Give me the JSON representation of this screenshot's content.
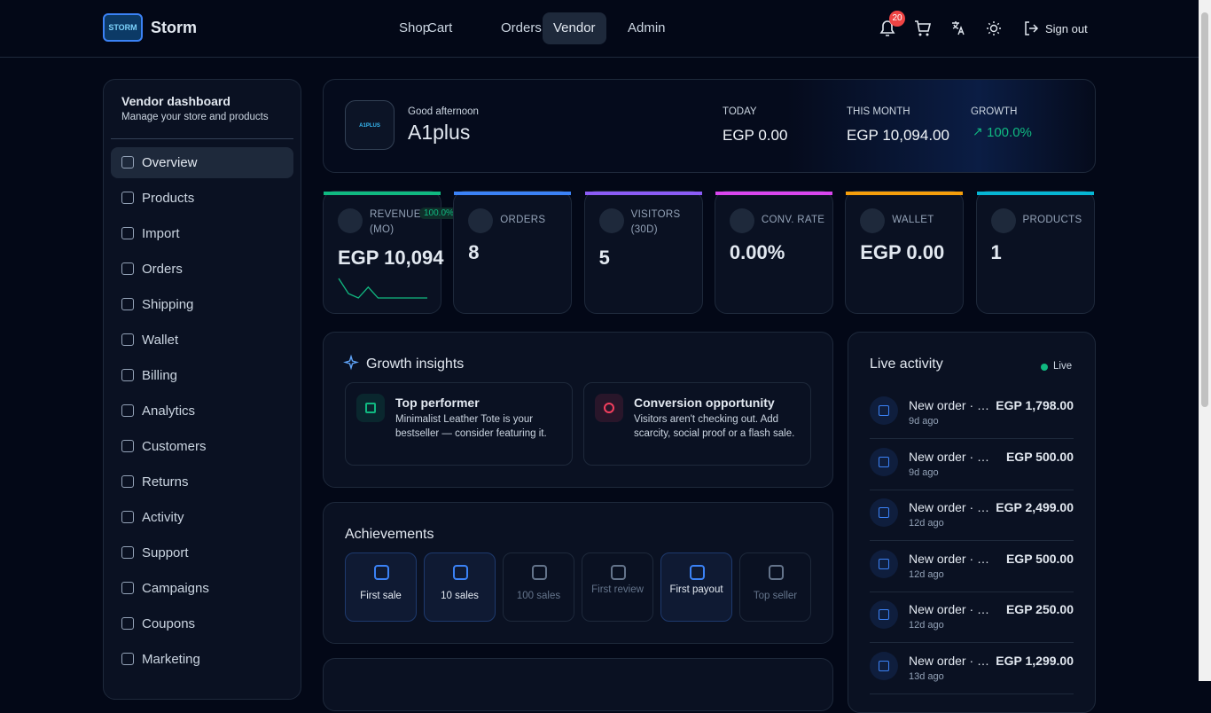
{
  "nav": {
    "logo_text": "STORM",
    "brand": "Storm",
    "links": [
      "Shop",
      "Cart",
      "Orders",
      "Vendor",
      "Admin"
    ],
    "active": 3,
    "notifications": "20",
    "sign_out": "Sign out"
  },
  "sidebar": {
    "title": "Vendor dashboard",
    "subtitle": "Manage your store and products",
    "active": 0,
    "items": [
      "Overview",
      "Products",
      "Import",
      "Orders",
      "Shipping",
      "Wallet",
      "Billing",
      "Analytics",
      "Customers",
      "Returns",
      "Activity",
      "Support",
      "Campaigns",
      "Coupons",
      "Marketing"
    ]
  },
  "hero": {
    "logo_text": "A1PLUS",
    "greeting": "Good afternoon",
    "store": "A1plus",
    "stats": [
      {
        "label": "TODAY",
        "value": "EGP 0.00"
      },
      {
        "label": "THIS MONTH",
        "value": "EGP 10,094.00"
      },
      {
        "label": "GROWTH",
        "value": "100.0%",
        "color": "#10b981"
      }
    ]
  },
  "kpis": [
    {
      "label": "REVENUE (MO)",
      "value": "EGP 10,094",
      "badge": "100.0%",
      "color": "#10b981",
      "sparkline": [
        9,
        2,
        0,
        5,
        0,
        0,
        0,
        0,
        0,
        0
      ]
    },
    {
      "label": "ORDERS",
      "value": "8",
      "color": "#3b82f6"
    },
    {
      "label": "VISITORS (30D)",
      "value": "5",
      "color": "#8b5cf6"
    },
    {
      "label": "CONV. RATE",
      "value": "0.00%",
      "color": "#d946ef"
    },
    {
      "label": "WALLET",
      "value": "EGP 0.00",
      "color": "#f59e0b"
    },
    {
      "label": "PRODUCTS",
      "value": "1",
      "color": "#06b6d4"
    }
  ],
  "insights": {
    "title": "Growth insights",
    "cards": [
      {
        "title": "Top performer",
        "text": "Minimalist Leather Tote is your bestseller — consider featuring it.",
        "color": "#10b981"
      },
      {
        "title": "Conversion opportunity",
        "text": "Visitors aren't checking out. Add scarcity, social proof or a flash sale.",
        "color": "#f43f5e"
      }
    ]
  },
  "achievements": {
    "title": "Achievements",
    "items": [
      {
        "label": "First sale",
        "earned": true
      },
      {
        "label": "10 sales",
        "earned": true
      },
      {
        "label": "100 sales",
        "earned": false
      },
      {
        "label": "First review",
        "earned": false
      },
      {
        "label": "First payout",
        "earned": true
      },
      {
        "label": "Top seller",
        "earned": false
      }
    ]
  },
  "activity": {
    "title": "Live activity",
    "status": "Live",
    "items": [
      {
        "title": "New order · …",
        "time": "9d ago",
        "amount": "EGP 1,798.00"
      },
      {
        "title": "New order · …",
        "time": "9d ago",
        "amount": "EGP 500.00"
      },
      {
        "title": "New order · …",
        "time": "12d ago",
        "amount": "EGP 2,499.00"
      },
      {
        "title": "New order · …",
        "time": "12d ago",
        "amount": "EGP 500.00"
      },
      {
        "title": "New order · …",
        "time": "12d ago",
        "amount": "EGP 250.00"
      },
      {
        "title": "New order · …",
        "time": "13d ago",
        "amount": "EGP 1,299.00"
      }
    ]
  }
}
